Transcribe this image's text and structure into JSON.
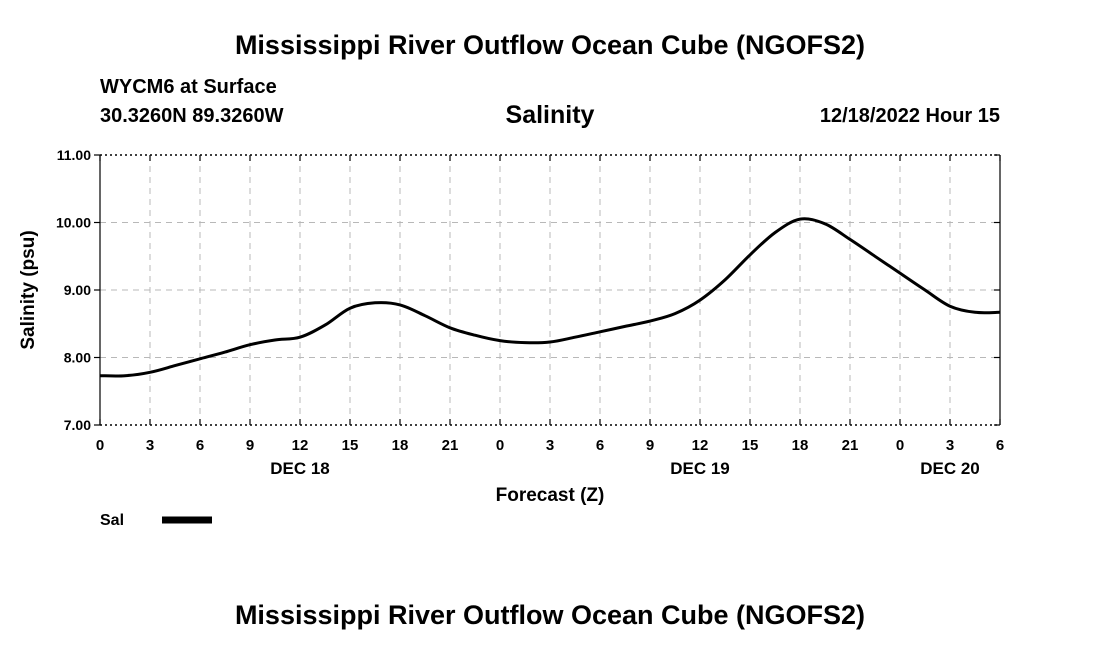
{
  "header": {
    "title": "Mississippi River Outflow Ocean Cube (NGOFS2)",
    "station": "WYCM6 at Surface",
    "coordinates": "30.3260N  89.3260W",
    "variable": "Salinity",
    "timestamp": "12/18/2022 Hour 15"
  },
  "footer": {
    "title": "Mississippi River Outflow Ocean Cube (NGOFS2)"
  },
  "chart_data": {
    "type": "line",
    "title": "Salinity",
    "xlabel": "Forecast (Z)",
    "ylabel": "Salinity (psu)",
    "xlim": [
      0,
      54
    ],
    "ylim": [
      7.0,
      11.0
    ],
    "grid": true,
    "y_ticks": [
      7.0,
      8.0,
      9.0,
      10.0,
      11.0
    ],
    "y_tick_labels": [
      "7.00",
      "8.00",
      "9.00",
      "10.00",
      "11.00"
    ],
    "x_ticks": [
      0,
      3,
      6,
      9,
      12,
      15,
      18,
      21,
      24,
      27,
      30,
      33,
      36,
      39,
      42,
      45,
      48,
      51,
      54
    ],
    "x_tick_labels": [
      "0",
      "3",
      "6",
      "9",
      "12",
      "15",
      "18",
      "21",
      "0",
      "3",
      "6",
      "9",
      "12",
      "15",
      "18",
      "21",
      "0",
      "3",
      "6"
    ],
    "date_labels": [
      {
        "x": 12,
        "label": "DEC 18"
      },
      {
        "x": 36,
        "label": "DEC 19"
      },
      {
        "x": 51,
        "label": "DEC 20"
      }
    ],
    "legend": {
      "placement": "bottom-left",
      "entries": [
        {
          "label": "Sal"
        }
      ]
    },
    "series": [
      {
        "name": "Sal",
        "color": "#000000",
        "x": [
          0,
          1.5,
          3,
          4.5,
          6,
          7.5,
          9,
          10.5,
          12,
          13.5,
          15,
          16.5,
          18,
          19.5,
          21,
          22.5,
          24,
          25.5,
          27,
          28.5,
          30,
          31.5,
          33,
          34.5,
          36,
          37.5,
          39,
          40.5,
          42,
          43.5,
          45,
          46.5,
          48,
          49.5,
          51,
          52.5,
          54
        ],
        "values": [
          7.73,
          7.73,
          7.78,
          7.88,
          7.98,
          8.08,
          8.19,
          8.26,
          8.3,
          8.48,
          8.73,
          8.81,
          8.78,
          8.62,
          8.44,
          8.33,
          8.25,
          8.22,
          8.23,
          8.3,
          8.38,
          8.46,
          8.54,
          8.65,
          8.85,
          9.15,
          9.52,
          9.85,
          10.05,
          9.98,
          9.75,
          9.5,
          9.25,
          9.0,
          8.76,
          8.67,
          8.67
        ]
      }
    ]
  }
}
